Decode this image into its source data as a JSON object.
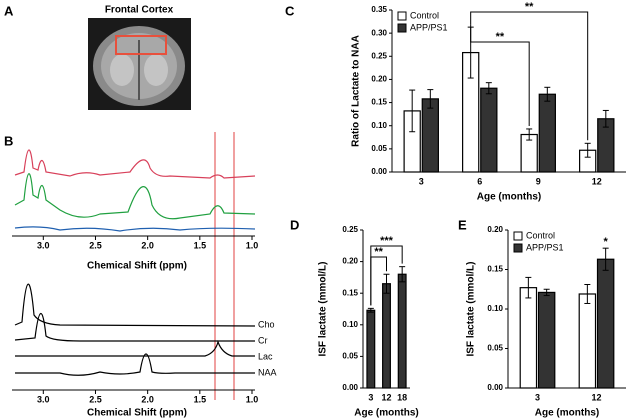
{
  "panel_a": {
    "panel": "A",
    "title": "Frontal Cortex"
  },
  "panel_b": {
    "panel": "B",
    "axis_label": "Chemical Shift (ppm)",
    "xlim": [
      3.3,
      1.0
    ],
    "xticks": [
      {
        "value": 3,
        "label": "3.0"
      },
      {
        "value": 2.5,
        "label": "2.5"
      },
      {
        "value": 2,
        "label": "2.0"
      },
      {
        "value": 1.5,
        "label": "1.5"
      },
      {
        "value": 1,
        "label": "1.0"
      }
    ],
    "traces": [
      "Cho",
      "Cr",
      "Lac",
      "NAA"
    ]
  },
  "chart_data": [
    {
      "type": "bar",
      "panel": "C",
      "ylabel": "Ratio of Lactate to NAA",
      "xlabel": "Age (months)",
      "categories": [
        "3",
        "6",
        "9",
        "12"
      ],
      "series": [
        {
          "name": "Control",
          "color": "#ffffff",
          "values": [
            0.132,
            0.258,
            0.081,
            0.047
          ],
          "errors": [
            0.045,
            0.055,
            0.012,
            0.015
          ]
        },
        {
          "name": "APP/PS1",
          "color": "#333333",
          "values": [
            0.158,
            0.181,
            0.168,
            0.115
          ],
          "errors": [
            0.02,
            0.012,
            0.015,
            0.018
          ]
        }
      ],
      "ylim": [
        0,
        0.35
      ],
      "yticks": [
        {
          "value": 0,
          "label": "0.00"
        },
        {
          "value": 0.05,
          "label": "0.05"
        },
        {
          "value": 0.1,
          "label": "0.10"
        },
        {
          "value": 0.15,
          "label": "0.15"
        },
        {
          "value": 0.2,
          "label": "0.20"
        },
        {
          "value": 0.25,
          "label": "0.25"
        },
        {
          "value": 0.3,
          "label": "0.30"
        },
        {
          "value": 0.35,
          "label": "0.35"
        }
      ],
      "legend": "upper left",
      "annotations": [
        "**",
        "**"
      ]
    },
    {
      "type": "bar",
      "panel": "D",
      "ylabel": "ISF lactate (mmol/L)",
      "xlabel": "Age (months)",
      "categories": [
        "3",
        "12",
        "18"
      ],
      "color": "#333333",
      "values": [
        0.123,
        0.165,
        0.18
      ],
      "errors": [
        0.003,
        0.015,
        0.012
      ],
      "ylim": [
        0,
        0.25
      ],
      "yticks": [
        {
          "value": 0,
          "label": "0.00"
        },
        {
          "value": 0.05,
          "label": "0.05"
        },
        {
          "value": 0.1,
          "label": "0.10"
        },
        {
          "value": 0.15,
          "label": "0.15"
        },
        {
          "value": 0.2,
          "label": "0.20"
        },
        {
          "value": 0.25,
          "label": "0.25"
        }
      ],
      "annotations": [
        "**",
        "***"
      ]
    },
    {
      "type": "bar",
      "panel": "E",
      "ylabel": "ISF lactate (mmol/L)",
      "xlabel": "Age (months)",
      "categories": [
        "3",
        "12"
      ],
      "series": [
        {
          "name": "Control",
          "color": "#ffffff",
          "values": [
            0.127,
            0.119
          ],
          "errors": [
            0.013,
            0.012
          ]
        },
        {
          "name": "APP/PS1",
          "color": "#333333",
          "values": [
            0.121,
            0.163
          ],
          "errors": [
            0.004,
            0.014
          ]
        }
      ],
      "ylim": [
        0,
        0.2
      ],
      "yticks": [
        {
          "value": 0,
          "label": "0.00"
        },
        {
          "value": 0.05,
          "label": "0.05"
        },
        {
          "value": 0.1,
          "label": "0.10"
        },
        {
          "value": 0.15,
          "label": "0.15"
        },
        {
          "value": 0.2,
          "label": "0.20"
        }
      ],
      "legend": "upper left",
      "annotations": [
        "*"
      ]
    }
  ]
}
